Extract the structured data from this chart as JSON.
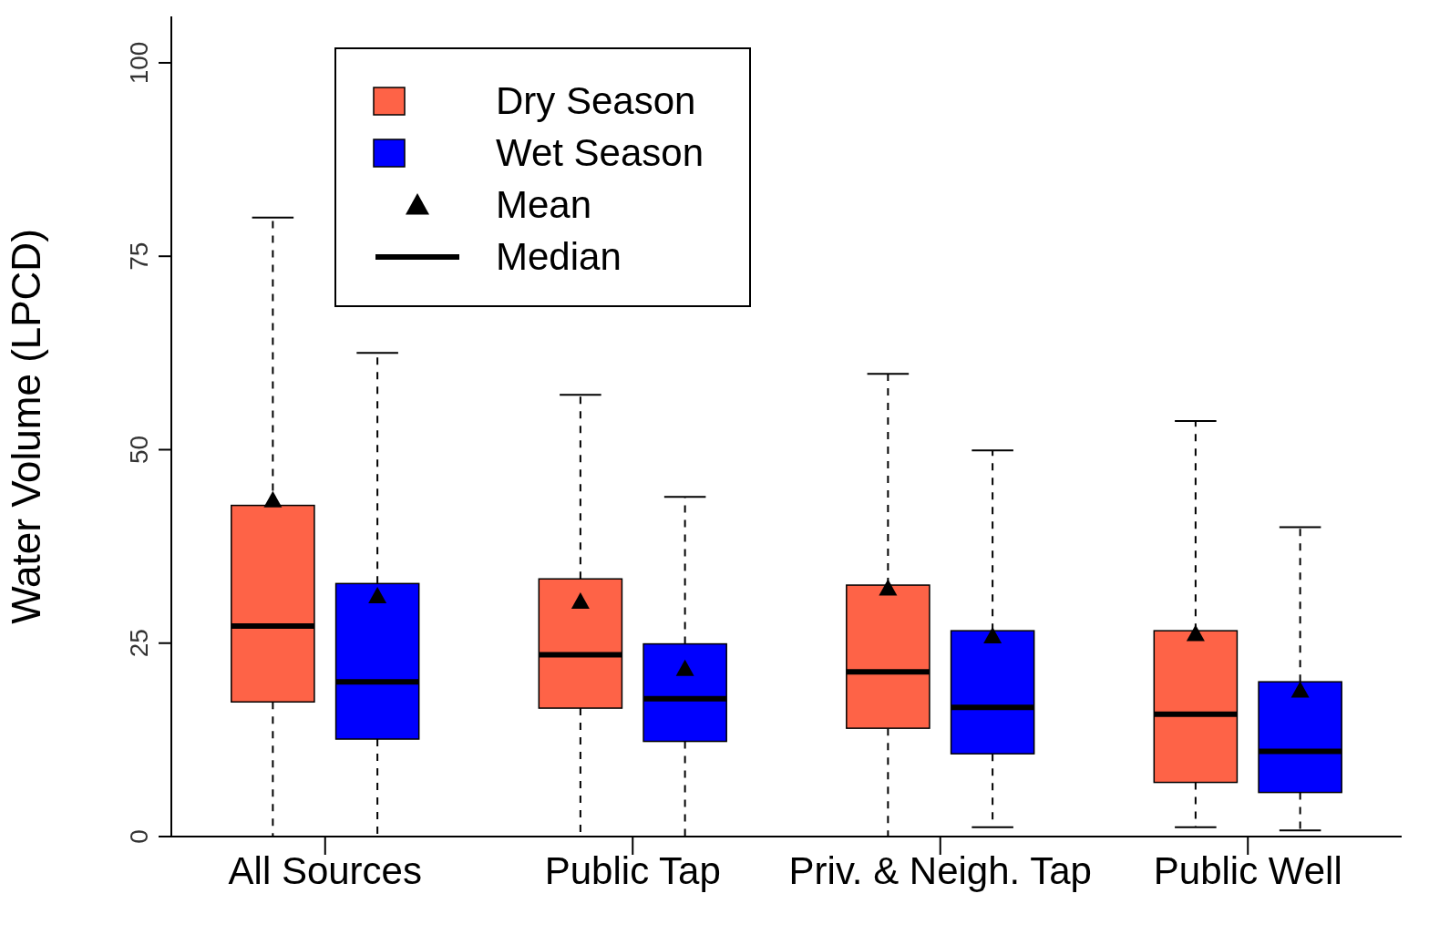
{
  "chart_data": {
    "type": "box",
    "ylabel": "Water Volume (LPCD)",
    "categories": [
      "All Sources",
      "Public Tap",
      "Priv. & Neigh. Tap",
      "Public Well"
    ],
    "series": [
      {
        "name": "Dry Season",
        "color": "#fe6347",
        "boxes": [
          {
            "low": 0,
            "q1": 17.4,
            "median": 27.2,
            "q3": 42.8,
            "high": 80,
            "mean": 43.5
          },
          {
            "low": 0,
            "q1": 16.6,
            "median": 23.5,
            "q3": 33.3,
            "high": 57.1,
            "mean": 30.4
          },
          {
            "low": 0,
            "q1": 14,
            "median": 21.3,
            "q3": 32.5,
            "high": 59.8,
            "mean": 32.1
          },
          {
            "low": 1.2,
            "q1": 7,
            "median": 15.8,
            "q3": 26.6,
            "high": 53.7,
            "mean": 26.2
          }
        ]
      },
      {
        "name": "Wet Season",
        "color": "#0000fe",
        "boxes": [
          {
            "low": 0,
            "q1": 12.6,
            "median": 20,
            "q3": 32.7,
            "high": 62.5,
            "mean": 31.1
          },
          {
            "low": 0,
            "q1": 12.3,
            "median": 17.8,
            "q3": 24.9,
            "high": 43.9,
            "mean": 21.7
          },
          {
            "low": 1.2,
            "q1": 10.7,
            "median": 16.7,
            "q3": 26.6,
            "high": 49.9,
            "mean": 25.9
          },
          {
            "low": 0.8,
            "q1": 5.7,
            "median": 11,
            "q3": 20,
            "high": 40,
            "mean": 18.9
          }
        ]
      }
    ],
    "ylim": [
      0,
      106
    ],
    "yticks": [
      0,
      25,
      50,
      75,
      100
    ],
    "legend": "top left",
    "marker": "triangle",
    "line_style": "dashed",
    "annotations": [
      "Mean",
      "Median"
    ]
  }
}
